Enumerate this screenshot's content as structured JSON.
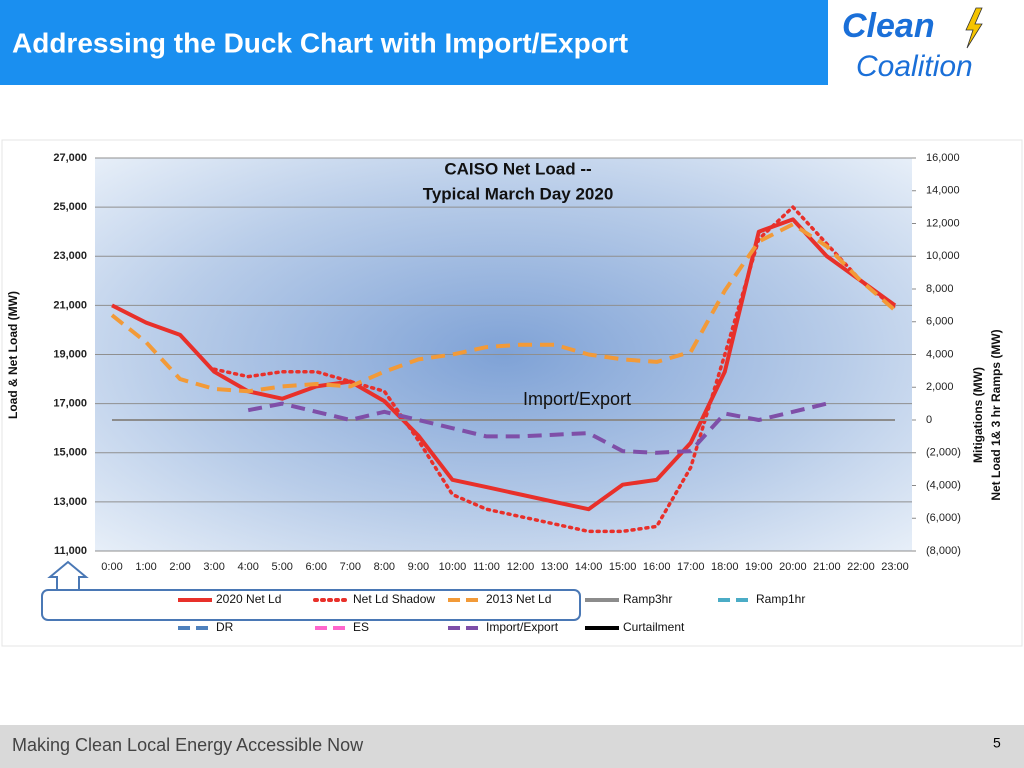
{
  "slide": {
    "title": "Addressing the Duck Chart with Import/Export",
    "logo_top": "Clean",
    "logo_bottom": "Coalition",
    "footer": "Making Clean Local Energy Accessible Now",
    "page_number": "5"
  },
  "chart_data": {
    "type": "line",
    "title": [
      "CAISO Net Load --",
      "Typical March Day 2020"
    ],
    "y_label": "Load & Net Load (MW)",
    "y2_label": [
      "Mitigations (MW)",
      "Net Load 1& 3 hr  Ramps (MW)"
    ],
    "annotation": "Import/Export",
    "grid": true,
    "categories": [
      "0:00",
      "1:00",
      "2:00",
      "3:00",
      "4:00",
      "5:00",
      "6:00",
      "7:00",
      "8:00",
      "9:00",
      "10:00",
      "11:00",
      "12:00",
      "13:00",
      "14:00",
      "15:00",
      "16:00",
      "17:00",
      "18:00",
      "19:00",
      "20:00",
      "21:00",
      "22:00",
      "23:00"
    ],
    "ylim": [
      11000,
      27000
    ],
    "yticks": [
      {
        "value": 11000,
        "label": "11,000"
      },
      {
        "value": 13000,
        "label": "13,000"
      },
      {
        "value": 15000,
        "label": "15,000"
      },
      {
        "value": 17000,
        "label": "17,000"
      },
      {
        "value": 19000,
        "label": "19,000"
      },
      {
        "value": 21000,
        "label": "21,000"
      },
      {
        "value": 23000,
        "label": "23,000"
      },
      {
        "value": 25000,
        "label": "25,000"
      },
      {
        "value": 27000,
        "label": "27,000"
      }
    ],
    "y2lim": [
      -8000,
      16000
    ],
    "y2ticks": [
      {
        "value": -8000,
        "label": "(8,000)"
      },
      {
        "value": -6000,
        "label": "(6,000)"
      },
      {
        "value": -4000,
        "label": "(4,000)"
      },
      {
        "value": -2000,
        "label": "(2,000)"
      },
      0,
      {
        "value": 2000,
        "label": "2,000"
      },
      {
        "value": 4000,
        "label": "4,000"
      },
      {
        "value": 6000,
        "label": "6,000"
      },
      {
        "value": 8000,
        "label": "8,000"
      },
      {
        "value": 10000,
        "label": "10,000"
      },
      {
        "value": 12000,
        "label": "12,000"
      },
      {
        "value": 14000,
        "label": "14,000"
      },
      {
        "value": 16000,
        "label": "16,000"
      }
    ],
    "series": [
      {
        "name": "2020 Net Ld",
        "color": "#e8302a",
        "dash": "solid",
        "values": [
          21000,
          20300,
          19800,
          18300,
          17500,
          17200,
          17700,
          17900,
          17100,
          15700,
          13900,
          13600,
          13300,
          13000,
          12700,
          13700,
          13900,
          15400,
          18300,
          24000,
          24500,
          23000,
          22000,
          21000
        ]
      },
      {
        "name": "Net Ld Shadow",
        "color": "#e8302a",
        "dash": "dotted",
        "values": [
          null,
          null,
          null,
          18400,
          18100,
          18300,
          18300,
          17900,
          17500,
          15500,
          13300,
          12700,
          12400,
          12100,
          11800,
          11800,
          12000,
          14400,
          19000,
          23700,
          25000,
          23500,
          22000,
          20900
        ]
      },
      {
        "name": "2013 Net Ld",
        "color": "#f29a38",
        "dash": "dashed",
        "values": [
          20600,
          19500,
          18000,
          17600,
          17500,
          17700,
          17800,
          17700,
          18300,
          18800,
          19000,
          19300,
          19400,
          19400,
          19000,
          18800,
          18700,
          19100,
          21600,
          23600,
          24300,
          23400,
          22000,
          20800
        ]
      },
      {
        "name": "Ramp3hr",
        "color": "#8c8c8c",
        "dash": "solid",
        "axis": "y2",
        "values": [
          0,
          0,
          0,
          0,
          0,
          0,
          0,
          0,
          0,
          0,
          0,
          0,
          0,
          0,
          0,
          0,
          0,
          0,
          0,
          0,
          0,
          0,
          0,
          0
        ]
      },
      {
        "name": "Ramp1hr",
        "color": "#4bacc6",
        "dash": "dashed",
        "axis": "y2",
        "values": [
          null,
          null,
          null,
          null,
          null,
          null,
          null,
          null,
          null,
          null,
          null,
          null,
          null,
          null,
          null,
          null,
          null,
          null,
          null,
          null,
          null,
          null,
          null,
          null
        ]
      },
      {
        "name": "DR",
        "color": "#4f81bd",
        "dash": "dashed",
        "axis": "y2",
        "values": [
          null,
          null,
          null,
          null,
          null,
          null,
          null,
          null,
          null,
          null,
          null,
          null,
          null,
          null,
          null,
          null,
          null,
          null,
          null,
          null,
          null,
          null,
          null,
          null
        ]
      },
      {
        "name": "ES",
        "color": "#ff66cc",
        "dash": "dashed",
        "axis": "y2",
        "values": [
          null,
          null,
          null,
          null,
          null,
          null,
          null,
          null,
          null,
          null,
          null,
          null,
          null,
          null,
          null,
          null,
          null,
          null,
          null,
          null,
          null,
          null,
          null,
          null
        ]
      },
      {
        "name": "Import/Export",
        "color": "#7f4fa8",
        "dash": "dashed",
        "axis": "y2",
        "values": [
          null,
          null,
          null,
          null,
          600,
          1000,
          500,
          0,
          500,
          0,
          -500,
          -1000,
          -1000,
          -900,
          -800,
          -1900,
          -2000,
          -1900,
          400,
          0,
          500,
          1000,
          null,
          null
        ]
      },
      {
        "name": "Curtailment",
        "color": "#000000",
        "dash": "solid",
        "axis": "y2",
        "values": [
          null,
          null,
          null,
          null,
          null,
          null,
          null,
          null,
          null,
          null,
          null,
          null,
          null,
          null,
          null,
          null,
          null,
          null,
          null,
          null,
          null,
          null,
          null,
          null
        ]
      }
    ]
  }
}
